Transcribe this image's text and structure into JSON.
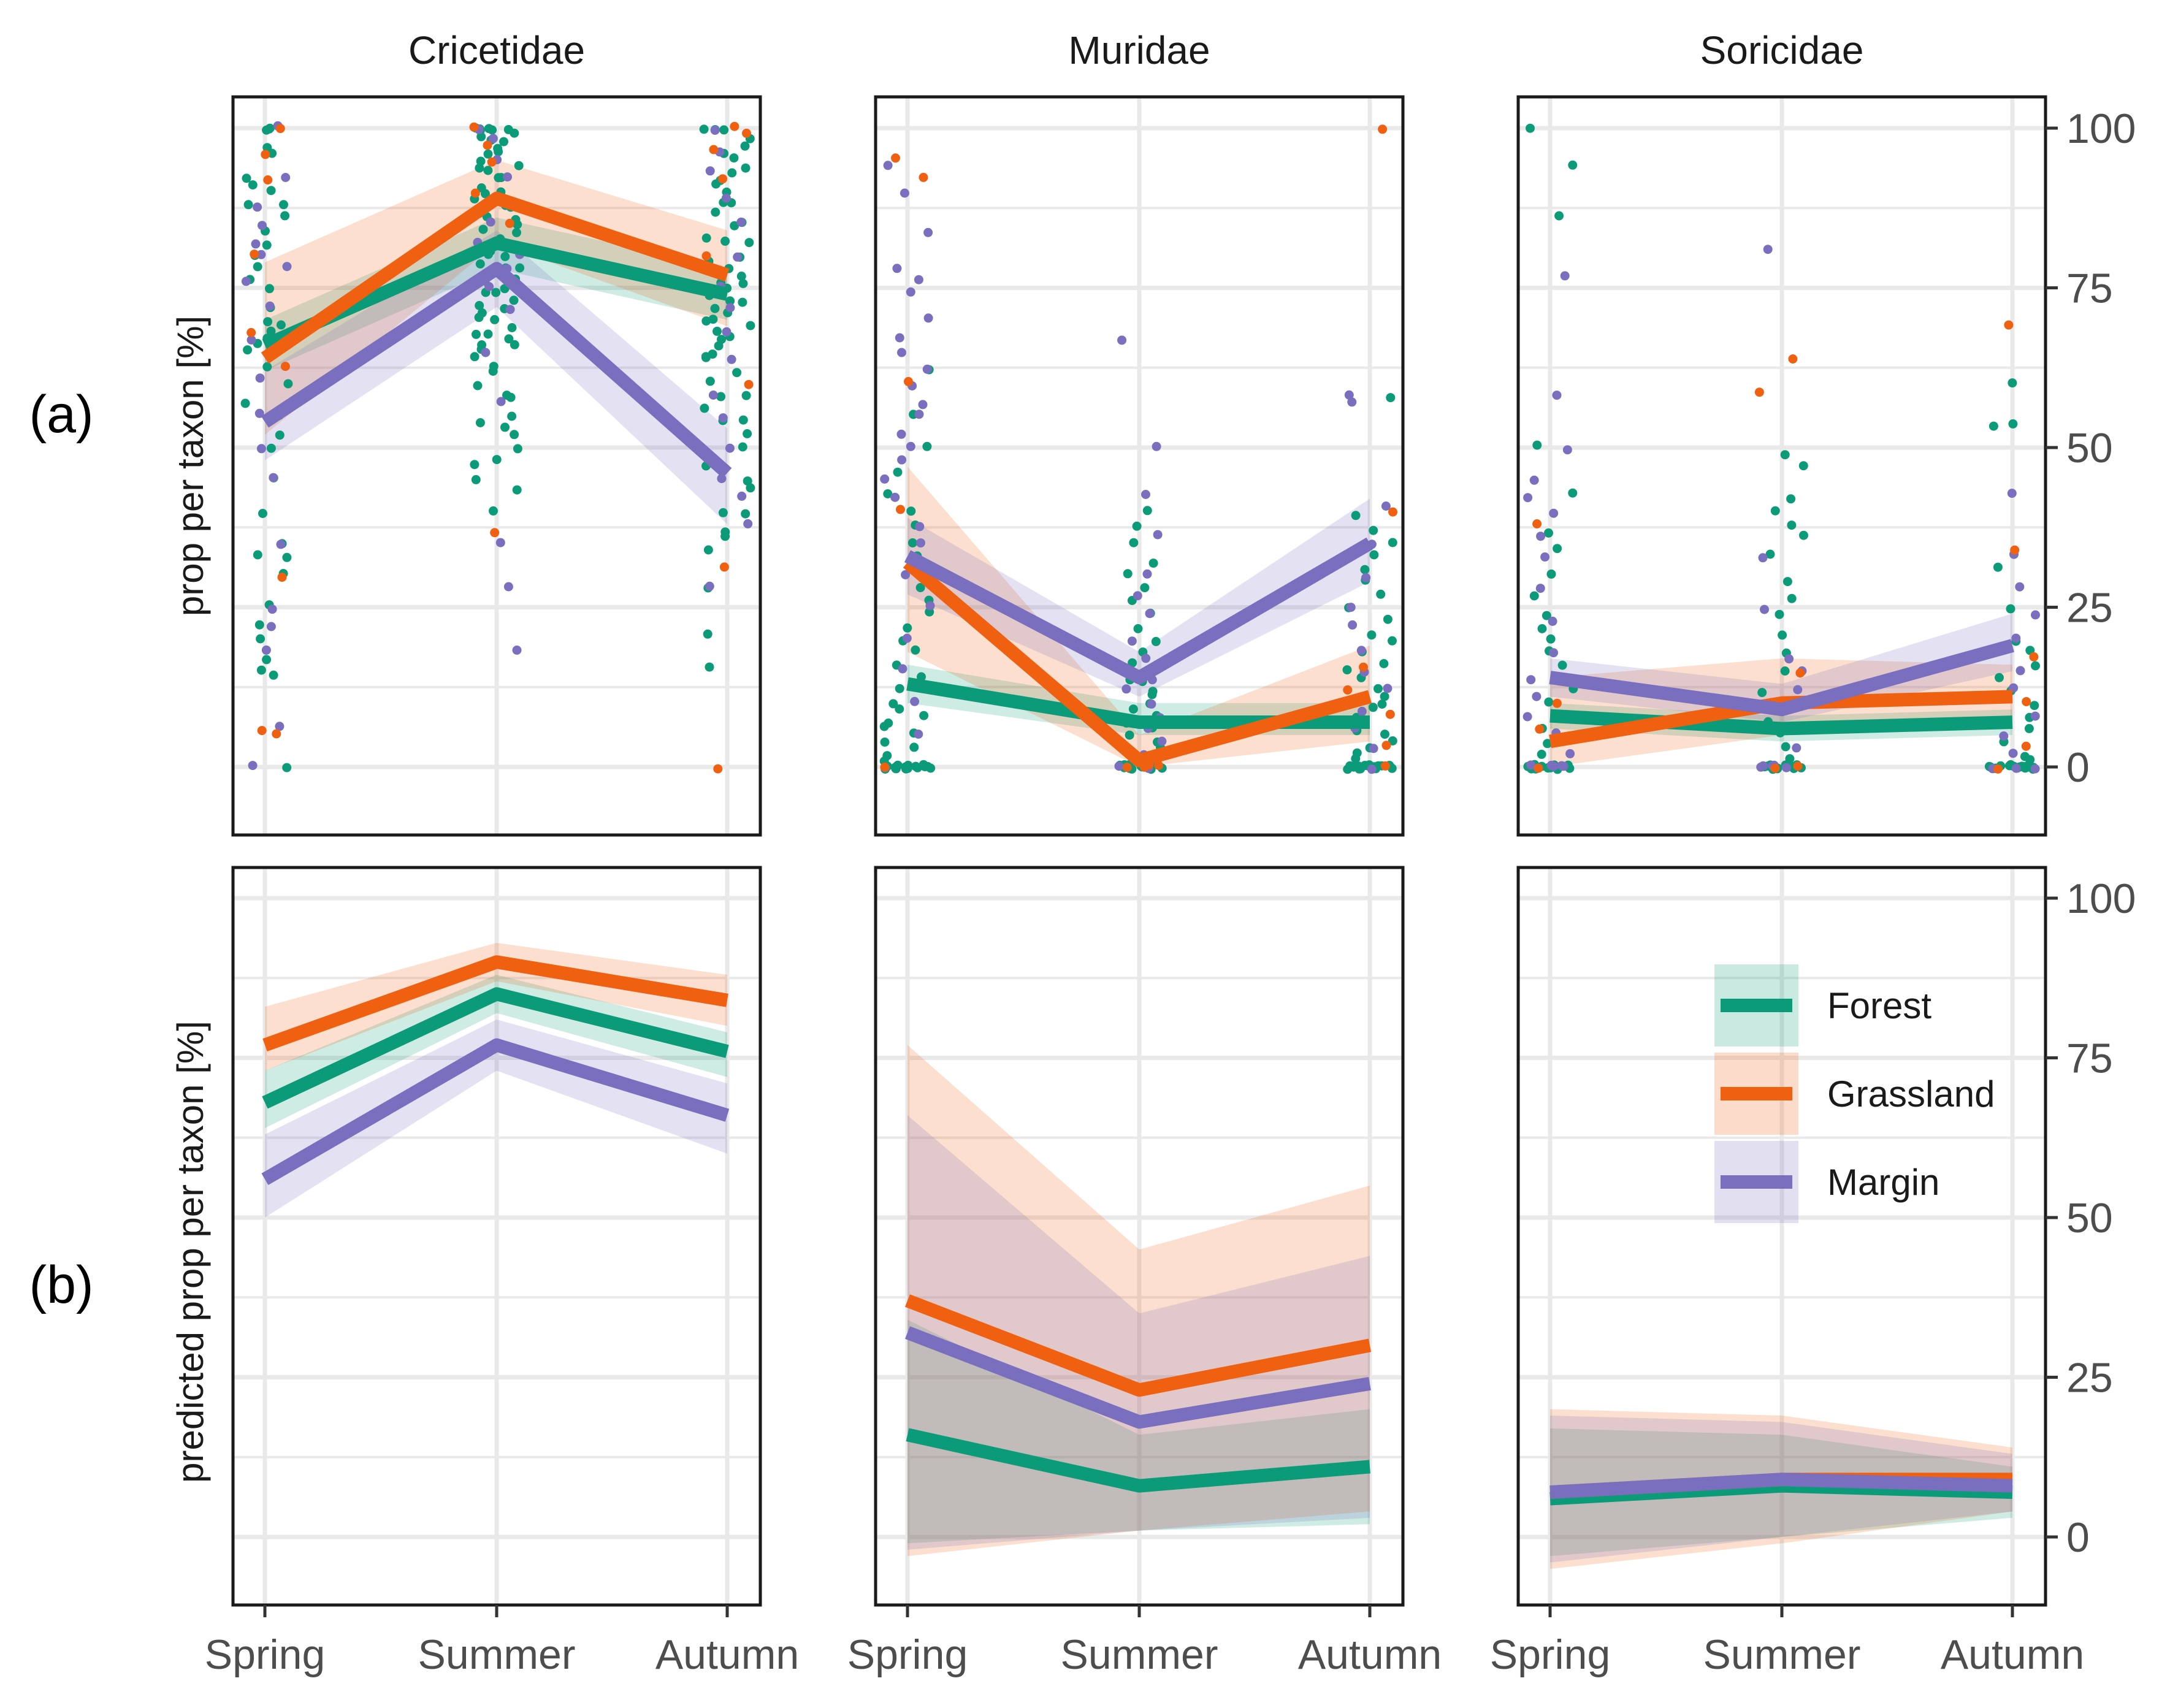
{
  "colors": {
    "Forest": "#0c9b78",
    "Grassland": "#ef6010",
    "Margin": "#7a6fbe",
    "grid": "#e9e9e9",
    "panel_border": "#1a1a1a"
  },
  "chart_data": {
    "type": "line",
    "facets": [
      "Cricetidae",
      "Muridae",
      "Soricidae"
    ],
    "rows": [
      {
        "label": "(a)",
        "ylabel": "prop per taxon [%]"
      },
      {
        "label": "(b)",
        "ylabel": "predicted prop per taxon [%]"
      }
    ],
    "categories": [
      "Spring",
      "Summer",
      "Autumn"
    ],
    "yticks": [
      0,
      25,
      50,
      75,
      100
    ],
    "ylim": [
      -11,
      104
    ],
    "legend": {
      "position": "inside-bottom-right-panel",
      "entries": [
        "Forest",
        "Grassland",
        "Margin"
      ]
    },
    "panels": [
      {
        "row": 0,
        "facet": "Cricetidae",
        "series": [
          {
            "name": "Forest",
            "values": [
              66,
              82,
              74
            ],
            "lower": [
              62,
              78,
              70
            ],
            "upper": [
              70,
              86,
              78
            ]
          },
          {
            "name": "Grassland",
            "values": [
              64,
              89,
              77
            ],
            "lower": [
              52,
              82,
              69
            ],
            "upper": [
              79,
              95,
              84
            ]
          },
          {
            "name": "Margin",
            "values": [
              54,
              78,
              46
            ],
            "lower": [
              48,
              72,
              38
            ],
            "upper": [
              62,
              84,
              53
            ]
          }
        ]
      },
      {
        "row": 0,
        "facet": "Muridae",
        "series": [
          {
            "name": "Forest",
            "values": [
              13,
              7,
              7
            ],
            "lower": [
              10,
              5,
              5
            ],
            "upper": [
              16,
              10,
              10
            ]
          },
          {
            "name": "Grassland",
            "values": [
              32,
              1,
              11
            ],
            "lower": [
              18,
              0,
              4
            ],
            "upper": [
              47,
              5,
              19
            ]
          },
          {
            "name": "Margin",
            "values": [
              33,
              14,
              35
            ],
            "lower": [
              27,
              11,
              29
            ],
            "upper": [
              39,
              18,
              42
            ]
          }
        ]
      },
      {
        "row": 0,
        "facet": "Soricidae",
        "series": [
          {
            "name": "Forest",
            "values": [
              8,
              6,
              7
            ],
            "lower": [
              6,
              4,
              5
            ],
            "upper": [
              10,
              8,
              9
            ]
          },
          {
            "name": "Grassland",
            "values": [
              4,
              10,
              11
            ],
            "lower": [
              0,
              5,
              7
            ],
            "upper": [
              14,
              17,
              16
            ]
          },
          {
            "name": "Margin",
            "values": [
              14,
              9,
              19
            ],
            "lower": [
              11,
              7,
              15
            ],
            "upper": [
              17,
              13,
              24
            ]
          }
        ]
      },
      {
        "row": 1,
        "facet": "Cricetidae",
        "series": [
          {
            "name": "Forest",
            "values": [
              68,
              85,
              76
            ],
            "lower": [
              64,
              82,
              72
            ],
            "upper": [
              73,
              88,
              79
            ]
          },
          {
            "name": "Grassland",
            "values": [
              77,
              90,
              84
            ],
            "lower": [
              73,
              87,
              80
            ],
            "upper": [
              83,
              93,
              88
            ]
          },
          {
            "name": "Margin",
            "values": [
              56,
              77,
              66
            ],
            "lower": [
              50,
              73,
              60
            ],
            "upper": [
              63,
              81,
              71
            ]
          }
        ]
      },
      {
        "row": 1,
        "facet": "Muridae",
        "series": [
          {
            "name": "Forest",
            "values": [
              16,
              8,
              11
            ],
            "lower": [
              -1,
              1,
              2
            ],
            "upper": [
              34,
              16,
              20
            ]
          },
          {
            "name": "Grassland",
            "values": [
              37,
              23,
              30
            ],
            "lower": [
              -3,
              1,
              4
            ],
            "upper": [
              77,
              45,
              55
            ]
          },
          {
            "name": "Margin",
            "values": [
              32,
              18,
              24
            ],
            "lower": [
              -2,
              1,
              3
            ],
            "upper": [
              66,
              35,
              44
            ]
          }
        ]
      },
      {
        "row": 1,
        "facet": "Soricidae",
        "series": [
          {
            "name": "Forest",
            "values": [
              6,
              8,
              7
            ],
            "lower": [
              -3,
              0,
              3
            ],
            "upper": [
              17,
              16,
              11
            ]
          },
          {
            "name": "Grassland",
            "values": [
              7,
              9,
              9
            ],
            "lower": [
              -5,
              -1,
              4
            ],
            "upper": [
              20,
              19,
              14
            ]
          },
          {
            "name": "Margin",
            "values": [
              7,
              9,
              8
            ],
            "lower": [
              -4,
              0,
              4
            ],
            "upper": [
              19,
              18,
              13
            ]
          }
        ]
      }
    ],
    "points": {
      "Cricetidae": {
        "Spring": {
          "Forest": [
            100,
            100,
            96,
            91,
            90,
            88,
            86,
            84,
            82,
            80,
            78,
            75,
            72,
            70,
            68,
            67,
            66,
            65,
            63,
            60,
            57,
            55,
            52,
            50,
            45,
            40,
            35,
            33,
            30,
            25,
            22,
            20,
            17,
            15,
            14,
            100,
            97,
            92,
            88,
            76,
            69,
            33,
            0
          ],
          "Grassland": [
            100,
            96,
            92,
            80,
            68,
            63,
            30,
            6,
            5
          ],
          "Margin": [
            100,
            92,
            88,
            85,
            82,
            80,
            78,
            76,
            72,
            67,
            61,
            55,
            50,
            45,
            35,
            25,
            22,
            18,
            6,
            0
          ]
        },
        "Summer": {
          "Forest": [
            100,
            100,
            100,
            100,
            100,
            99,
            99,
            98,
            97,
            96,
            95,
            94,
            93,
            92,
            91,
            90,
            89,
            88,
            87,
            86,
            85,
            84,
            83,
            82,
            81,
            80,
            79,
            78,
            77,
            76,
            75,
            74,
            73,
            72,
            71,
            70,
            69,
            68,
            67,
            66,
            65,
            63,
            60,
            58,
            55,
            53,
            50,
            47,
            45,
            43,
            40,
            100,
            98,
            96,
            94,
            92,
            90,
            88,
            86,
            84,
            82,
            80,
            78,
            76,
            74,
            72,
            70,
            68,
            66,
            64,
            62,
            58,
            54,
            52,
            48
          ],
          "Grassland": [
            100,
            97,
            95,
            90,
            85,
            37
          ],
          "Margin": [
            100,
            98,
            95,
            92,
            88,
            85,
            82,
            80,
            78,
            75,
            72,
            65,
            57,
            35,
            28,
            18
          ]
        },
        "Autumn": {
          "Forest": [
            100,
            100,
            98,
            96,
            95,
            93,
            92,
            90,
            88,
            87,
            85,
            83,
            82,
            80,
            78,
            77,
            76,
            75,
            74,
            73,
            72,
            71,
            70,
            69,
            68,
            67,
            66,
            65,
            64,
            62,
            60,
            58,
            56,
            54,
            52,
            50,
            47,
            44,
            40,
            37,
            34,
            100,
            97,
            94,
            91,
            88,
            85,
            82,
            79,
            76,
            73,
            70,
            67,
            64,
            58,
            54,
            45,
            40,
            36,
            28,
            21,
            16
          ],
          "Grassland": [
            100,
            99,
            97,
            92,
            80,
            60,
            31,
            0
          ],
          "Margin": [
            100,
            96,
            93,
            89,
            85,
            80,
            75,
            72,
            68,
            64,
            58,
            55,
            50,
            45,
            42,
            38,
            28
          ]
        }
      },
      "Muridae": {
        "Spring": {
          "Forest": [
            62,
            55,
            50,
            46,
            43,
            40,
            38,
            35,
            33,
            32,
            30,
            28,
            26,
            24,
            22,
            20,
            18,
            16,
            14,
            12,
            10,
            9,
            8,
            7,
            6,
            5,
            4,
            3,
            2,
            1,
            0,
            0,
            0,
            0,
            0,
            0,
            0,
            0,
            0,
            0,
            0,
            0,
            0,
            0,
            0,
            0,
            0,
            0,
            0
          ],
          "Grassland": [
            95,
            92,
            60,
            40,
            0
          ],
          "Margin": [
            94,
            90,
            84,
            78,
            76,
            74,
            70,
            67,
            65,
            62,
            60,
            57,
            55,
            52,
            50,
            48,
            45,
            42,
            38,
            35,
            30,
            25,
            20,
            15,
            10,
            5,
            0
          ]
        },
        "Summer": {
          "Forest": [
            40,
            38,
            35,
            32,
            30,
            28,
            26,
            24,
            22,
            20,
            18,
            16,
            15,
            14,
            13,
            12,
            11,
            10,
            9,
            8,
            7,
            6,
            5,
            4,
            3,
            2,
            1,
            0,
            0,
            0,
            0,
            0,
            0,
            0,
            0,
            0,
            0,
            0,
            0,
            0,
            0,
            0
          ],
          "Grassland": [
            0,
            0,
            0,
            0
          ],
          "Margin": [
            67,
            50,
            43,
            36,
            30,
            27,
            24,
            20,
            17,
            14,
            12,
            10,
            8,
            6,
            4,
            2,
            0,
            0,
            0,
            0
          ]
        },
        "Autumn": {
          "Forest": [
            58,
            39,
            37,
            35,
            33,
            31,
            29,
            27,
            25,
            23,
            21,
            20,
            18,
            16,
            15,
            14,
            12,
            11,
            10,
            9,
            8,
            7,
            6,
            5,
            4,
            3,
            2,
            1,
            0,
            0,
            0,
            0,
            0,
            0,
            0,
            0,
            0,
            0,
            0,
            0,
            0,
            0,
            0,
            0,
            0,
            0
          ],
          "Grassland": [
            100,
            40,
            16,
            12,
            8,
            3,
            0
          ],
          "Margin": [
            58,
            57,
            41,
            35,
            30,
            25,
            22,
            18,
            15,
            12,
            9,
            6,
            3,
            0
          ]
        }
      },
      "Soricidae": {
        "Spring": {
          "Forest": [
            100,
            94,
            86,
            50,
            43,
            37,
            34,
            30,
            27,
            24,
            22,
            20,
            18,
            16,
            14,
            12,
            10,
            8,
            6,
            4,
            2,
            0,
            0,
            0,
            0,
            0,
            0,
            0,
            0,
            0,
            0,
            0,
            0,
            0,
            0,
            0,
            0
          ],
          "Grassland": [
            38,
            10,
            6,
            0
          ],
          "Margin": [
            77,
            58,
            50,
            45,
            42,
            40,
            36,
            33,
            28,
            23,
            18,
            14,
            11,
            8,
            5,
            2,
            0,
            0,
            0,
            0,
            0,
            0
          ]
        },
        "Summer": {
          "Forest": [
            49,
            47,
            42,
            40,
            38,
            36,
            33,
            29,
            26,
            24,
            21,
            18,
            15,
            12,
            9,
            7,
            5,
            3,
            1,
            0,
            0,
            0,
            0,
            0,
            0,
            0,
            0,
            0,
            0,
            0
          ],
          "Grassland": [
            64,
            59,
            15,
            10,
            6,
            0,
            0
          ],
          "Margin": [
            81,
            33,
            25,
            17,
            15,
            12,
            9,
            6,
            3,
            0,
            0,
            0,
            0,
            0
          ]
        },
        "Autumn": {
          "Forest": [
            60,
            54,
            53,
            31,
            25,
            20,
            18,
            16,
            14,
            12,
            10,
            8,
            6,
            4,
            2,
            1,
            0,
            0,
            0,
            0,
            0,
            0,
            0,
            0,
            0,
            0,
            0,
            0,
            0,
            0,
            0,
            0,
            0,
            0
          ],
          "Grassland": [
            69,
            34,
            17,
            10,
            3,
            0
          ],
          "Margin": [
            43,
            33,
            28,
            24,
            20,
            15,
            12,
            8,
            5,
            2,
            0,
            0,
            0
          ]
        }
      }
    }
  }
}
